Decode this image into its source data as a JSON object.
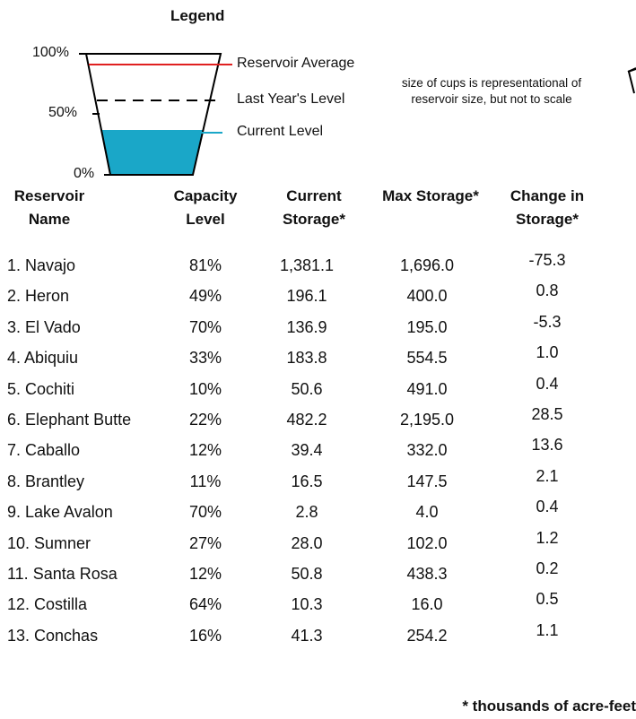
{
  "legend": {
    "title": "Legend",
    "scale": [
      "100%",
      "50%",
      "0%"
    ],
    "lines": [
      "Reservoir Average",
      "Last Year's Level",
      "Current Level"
    ],
    "note": "size of cups is representational of reservoir size, but not to scale"
  },
  "table": {
    "headers": [
      "Reservoir Name",
      "Capacity Level",
      "Current Storage*",
      "Max Storage*",
      "Change in Storage*"
    ],
    "rows": [
      [
        "1. Navajo",
        "81%",
        "1,381.1",
        "1,696.0",
        "-75.3"
      ],
      [
        "2. Heron",
        "49%",
        "196.1",
        "400.0",
        "0.8"
      ],
      [
        "3. El Vado",
        "70%",
        "136.9",
        "195.0",
        "-5.3"
      ],
      [
        "4. Abiquiu",
        "33%",
        "183.8",
        "554.5",
        "1.0"
      ],
      [
        "5. Cochiti",
        "10%",
        "50.6",
        "491.0",
        "0.4"
      ],
      [
        "6. Elephant Butte",
        "22%",
        "482.2",
        "2,195.0",
        "28.5"
      ],
      [
        "7. Caballo",
        "12%",
        "39.4",
        "332.0",
        "13.6"
      ],
      [
        "8. Brantley",
        "11%",
        "16.5",
        "147.5",
        "2.1"
      ],
      [
        "9. Lake Avalon",
        "70%",
        "2.8",
        "4.0",
        "0.4"
      ],
      [
        "10. Sumner",
        "27%",
        "28.0",
        "102.0",
        "1.2"
      ],
      [
        "11. Santa Rosa",
        "12%",
        "50.8",
        "438.3",
        "0.2"
      ],
      [
        "12. Costilla",
        "64%",
        "10.3",
        "16.0",
        "0.5"
      ],
      [
        "13. Conchas",
        "16%",
        "41.3",
        "254.2",
        "1.1"
      ]
    ],
    "footnote": "* thousands of acre-feet"
  }
}
